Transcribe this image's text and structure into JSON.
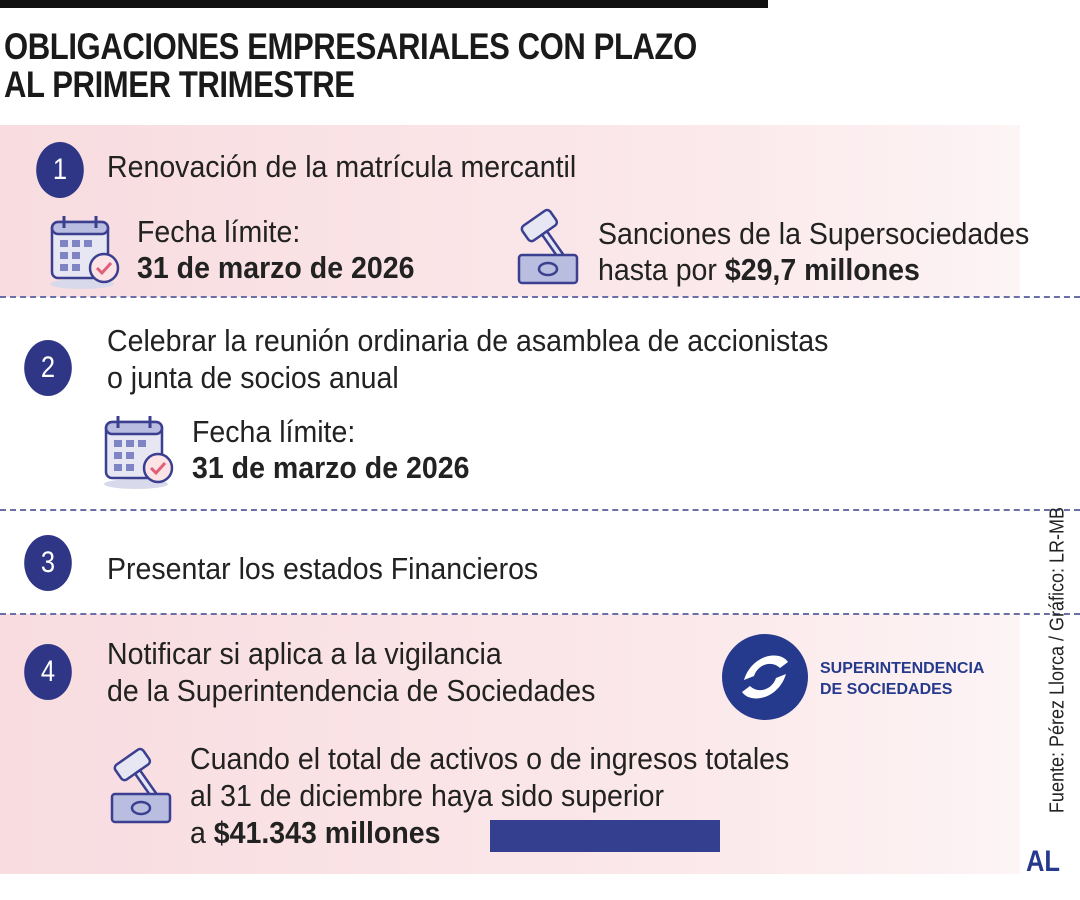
{
  "header": {
    "title": [
      "OBLIGACIONES EMPRESARIALES CON PLAZO",
      "AL PRIMER TRIMESTRE"
    ]
  },
  "items": [
    {
      "number": "1",
      "text": [
        "Renovación de la matrícula mercantil"
      ],
      "deadline": {
        "label": "Fecha límite:",
        "date": "31 de marzo de 2026"
      },
      "sanction": {
        "line1": "Sanciones de la Supersociedades",
        "prefix": "hasta por ",
        "amount": "$29,7 millones"
      }
    },
    {
      "number": "2",
      "text": [
        "Celebrar la reunión ordinaria de asamblea de accionistas",
        "o junta de socios anual"
      ],
      "deadline": {
        "label": "Fecha límite:",
        "date": "31 de marzo de 2026"
      }
    },
    {
      "number": "3",
      "text": [
        "Presentar los estados Financieros"
      ]
    },
    {
      "number": "4",
      "text": [
        "Notificar si aplica a la vigilancia",
        "de la Superintendencia de Sociedades"
      ],
      "logo": [
        "SUPERINTENDENCIA",
        "DE SOCIEDADES"
      ],
      "condition": {
        "lines": [
          "Cuando el total de activos o de ingresos totales",
          "al 31 de diciembre haya sido superior"
        ],
        "prefix": "a ",
        "amount": "$41.343 millones"
      }
    }
  ],
  "footer": {
    "source": "Fuente:  Pérez Llorca / Gráfico: LR-MB",
    "brand": "AL"
  }
}
